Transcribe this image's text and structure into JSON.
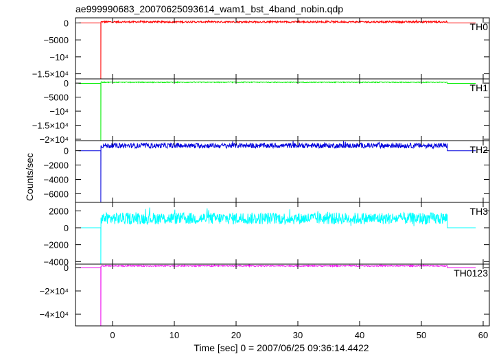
{
  "title": "ae999990683_20070625093614_wam1_bst_4band_nobin.qdp",
  "ylabel": "Counts/sec",
  "xlabel": "Time [sec] 0 = 2007/06/25 09:36:14.4422",
  "chart_data": [
    {
      "type": "line",
      "name": "TH0",
      "color": "#ff0000",
      "xlim": [
        -6,
        61
      ],
      "ylim": [
        -16500,
        1500
      ],
      "yticks": [
        {
          "value": 0,
          "label": "0"
        },
        {
          "value": -5000,
          "label": "−5000"
        },
        {
          "value": -10000,
          "label": "−10⁴"
        },
        {
          "value": -15000,
          "label": "−1.5×10⁴"
        }
      ],
      "baseline": 0,
      "drop_time": -1.9,
      "drop_min": -16500,
      "active": [
        -1.9,
        54.2
      ],
      "active_level": 300,
      "noise": 250
    },
    {
      "type": "line",
      "name": "TH1",
      "color": "#00ee00",
      "xlim": [
        -6,
        61
      ],
      "ylim": [
        -20500,
        1500
      ],
      "yticks": [
        {
          "value": 0,
          "label": "0"
        },
        {
          "value": -5000,
          "label": "−5000"
        },
        {
          "value": -10000,
          "label": "−10⁴"
        },
        {
          "value": -15000,
          "label": "−1.5×10⁴"
        },
        {
          "value": -20000,
          "label": "−2×10⁴"
        }
      ],
      "baseline": -100,
      "drop_time": -1.9,
      "drop_min": -20500,
      "active": [
        -1.9,
        54.2
      ],
      "active_level": 300,
      "noise": 150
    },
    {
      "type": "line",
      "name": "TH2",
      "color": "#0000dd",
      "xlim": [
        -6,
        61
      ],
      "ylim": [
        -7200,
        1400
      ],
      "yticks": [
        {
          "value": 0,
          "label": "0"
        },
        {
          "value": -2000,
          "label": "−2000"
        },
        {
          "value": -4000,
          "label": "−4000"
        },
        {
          "value": -6000,
          "label": "−6000"
        }
      ],
      "baseline": 0,
      "drop_time": -1.9,
      "drop_min": -7200,
      "active": [
        -1.9,
        54.2
      ],
      "active_level": 700,
      "noise": 350
    },
    {
      "type": "line",
      "name": "TH3",
      "color": "#00ffff",
      "xlim": [
        -6,
        61
      ],
      "ylim": [
        -4300,
        3000
      ],
      "yticks": [
        {
          "value": 2000,
          "label": "2000"
        },
        {
          "value": 0,
          "label": "0"
        },
        {
          "value": -2000,
          "label": "−2000"
        },
        {
          "value": -4000,
          "label": "−4000"
        }
      ],
      "baseline": 0,
      "drop_time": -1.9,
      "drop_min": -4300,
      "active": [
        -1.9,
        54.2
      ],
      "active_level": 1100,
      "noise": 700
    },
    {
      "type": "line",
      "name": "TH0123",
      "color": "#ee00ee",
      "xlim": [
        -6,
        61
      ],
      "ylim": [
        -50000,
        3000
      ],
      "yticks": [
        {
          "value": 0,
          "label": "0"
        },
        {
          "value": -20000,
          "label": "−2×10⁴"
        },
        {
          "value": -40000,
          "label": "−4×10⁴"
        }
      ],
      "baseline": 0,
      "drop_time": -1.9,
      "drop_min": -50000,
      "active": [
        -1.9,
        54.2
      ],
      "active_level": 1500,
      "noise": 500
    }
  ],
  "xticks": [
    {
      "value": 0,
      "label": "0"
    },
    {
      "value": 10,
      "label": "10"
    },
    {
      "value": 20,
      "label": "20"
    },
    {
      "value": 30,
      "label": "30"
    },
    {
      "value": 40,
      "label": "40"
    },
    {
      "value": 50,
      "label": "50"
    },
    {
      "value": 60,
      "label": "60"
    }
  ]
}
